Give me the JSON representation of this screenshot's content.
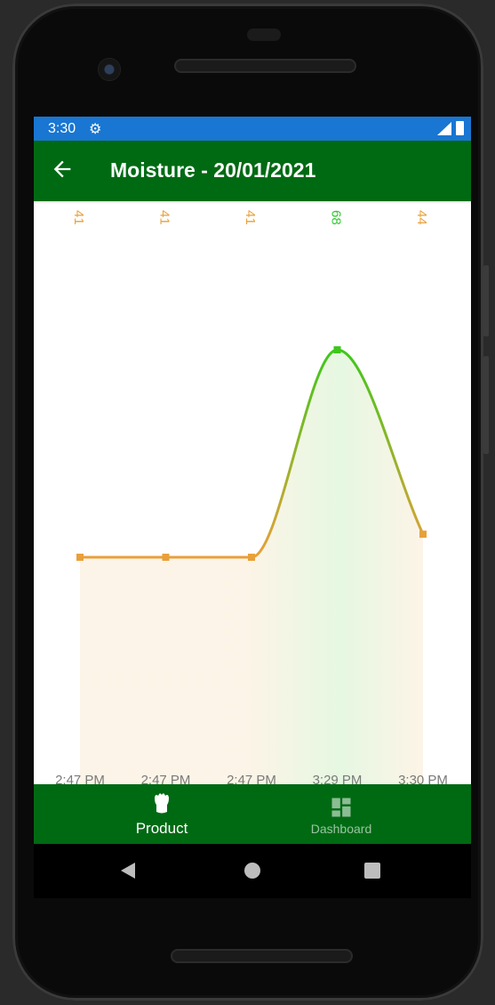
{
  "status_bar": {
    "time": "3:30",
    "settings_icon": "gear-icon",
    "signal_icon": "signal-icon",
    "battery_icon": "battery-icon"
  },
  "app_bar": {
    "back_icon": "arrow-back-icon",
    "title": "Moisture - 20/01/2021",
    "color": "#006a13"
  },
  "chart_data": {
    "type": "line",
    "title": "",
    "xlabel": "",
    "ylabel": "",
    "categories": [
      "2:47 PM",
      "2:47 PM",
      "2:47 PM",
      "3:29 PM",
      "3:30 PM"
    ],
    "values": [
      41,
      41,
      41,
      68,
      44
    ],
    "data_labels": [
      "41",
      "41",
      "41",
      "68",
      "44"
    ],
    "ylim": [
      0,
      68
    ],
    "smoothing": "spline",
    "area_fill": true,
    "grid": false,
    "legend": "none",
    "colors": {
      "low": "#e8a03a",
      "high": "#3ec71b",
      "label_low": "#e8a03a",
      "label_high": "#2fc92f"
    }
  },
  "bottom_nav": {
    "items": [
      {
        "label": "Product",
        "icon": "plant-icon",
        "active": true
      },
      {
        "label": "Dashboard",
        "icon": "dashboard-icon",
        "active": false
      }
    ]
  },
  "system_nav": {
    "back_icon": "back-triangle-icon",
    "home_icon": "home-circle-icon",
    "recents_icon": "recents-square-icon"
  }
}
